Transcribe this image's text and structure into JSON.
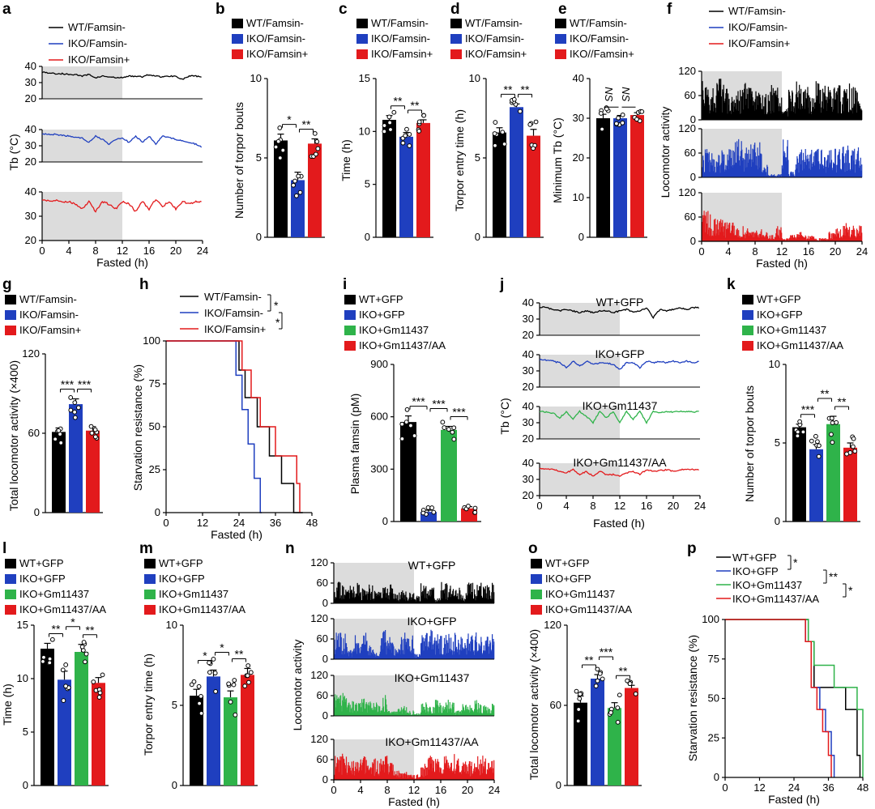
{
  "colors": {
    "WT": "#000000",
    "IKO": "#1f3fbf",
    "Gm": "#2fb34a",
    "AA": "#e31a1c",
    "shade": "#dcdcdc"
  },
  "chart_data": [
    {
      "id": "a",
      "type": "line",
      "xlabel": "Fasted (h)",
      "ylabel": "Tb (°C)",
      "xlim": [
        0,
        24
      ],
      "ylim": [
        20,
        40
      ],
      "x_ticks": [
        "0",
        "4",
        "8",
        "12",
        "16",
        "20",
        "24"
      ],
      "y_ticks": [
        "20",
        "30",
        "40"
      ],
      "shaded_x": [
        0,
        12
      ],
      "series": [
        {
          "name": "WT/Famsin-",
          "color": "#000000",
          "values": [
            36.5,
            36,
            35.5,
            35.5,
            35,
            35,
            34,
            35,
            33,
            34,
            33.5,
            33,
            33,
            34,
            34,
            33.5,
            35,
            34,
            33.5,
            34,
            34,
            32,
            34,
            34,
            33
          ]
        },
        {
          "name": "IKO/Famsin-",
          "color": "#1f3fbf",
          "values": [
            37.5,
            37,
            37,
            36.5,
            36,
            35,
            35,
            32,
            36,
            34,
            31,
            34,
            35,
            32,
            36,
            32,
            36,
            31,
            36,
            35,
            34,
            33,
            32,
            31,
            29
          ]
        },
        {
          "name": "IKO/Famsin+",
          "color": "#e31a1c",
          "values": [
            37,
            36.5,
            36.5,
            36,
            36,
            35,
            33,
            36,
            32,
            36,
            35,
            33,
            36,
            35,
            32,
            36,
            33,
            37,
            34,
            36,
            33,
            36,
            35,
            36,
            36
          ]
        }
      ]
    },
    {
      "id": "b",
      "type": "bar",
      "ylabel": "Number of torpor bouts",
      "ylim": [
        0,
        10
      ],
      "y_ticks": [
        "0",
        "5",
        "10"
      ],
      "legend": [
        "WT/Famsin-",
        "IKO/Famsin-",
        "IKO/Famsin+"
      ],
      "values": [
        6.1,
        3.6,
        5.9
      ],
      "errors": [
        0.4,
        0.5,
        0.3
      ],
      "significance": [
        {
          "from": 0,
          "to": 1,
          "text": "*"
        },
        {
          "from": 1,
          "to": 2,
          "text": "**"
        }
      ]
    },
    {
      "id": "c",
      "type": "bar",
      "ylabel": "Time (h)",
      "ylim": [
        0,
        15
      ],
      "y_ticks": [
        "0",
        "5",
        "10",
        "15"
      ],
      "legend": [
        "WT/Famsin-",
        "IKO/Famsin-",
        "IKO/Famsin+"
      ],
      "values": [
        11.1,
        9.5,
        10.8
      ],
      "errors": [
        0.4,
        0.4,
        0.3
      ],
      "significance": [
        {
          "from": 0,
          "to": 1,
          "text": "**"
        },
        {
          "from": 1,
          "to": 2,
          "text": "**"
        }
      ]
    },
    {
      "id": "d",
      "type": "bar",
      "ylabel": "Torpor entry time (h)",
      "ylim": [
        0,
        10
      ],
      "y_ticks": [
        "0",
        "5",
        "10"
      ],
      "legend": [
        "WT/Famsin-",
        "IKO/Famsin-",
        "IKO/Famsin+"
      ],
      "values": [
        6.6,
        8.2,
        6.4
      ],
      "errors": [
        0.3,
        0.2,
        0.4
      ],
      "significance": [
        {
          "from": 0,
          "to": 1,
          "text": "**"
        },
        {
          "from": 1,
          "to": 2,
          "text": "**"
        }
      ]
    },
    {
      "id": "e",
      "type": "bar",
      "ylabel": "Minimum Tb (°C)",
      "ylim": [
        0,
        40
      ],
      "y_ticks": [
        "0",
        "10",
        "20",
        "30",
        "40"
      ],
      "legend": [
        "WT/Famsin-",
        "IKO/Famsin-",
        "IKO//Famsin+"
      ],
      "values": [
        30.0,
        30.0,
        30.8
      ],
      "errors": [
        1.0,
        0.7,
        0.6
      ],
      "ns_labels": [
        "NS",
        "NS"
      ]
    },
    {
      "id": "f",
      "type": "bar",
      "xlabel": "Fasted (h)",
      "ylabel": "Locomotor activity",
      "xlim": [
        0,
        24
      ],
      "ylim": [
        0,
        120
      ],
      "x_ticks": [
        "0",
        "4",
        "8",
        "12",
        "16",
        "20",
        "24"
      ],
      "y_ticks": [
        "0",
        "60",
        "120"
      ],
      "shaded_x": [
        0,
        12
      ],
      "series": [
        {
          "name": "WT/Famsin-",
          "color": "#000000",
          "level_per_hour": [
            60,
            55,
            65,
            60,
            50,
            55,
            60,
            50,
            45,
            40,
            55,
            50,
            20,
            55,
            60,
            55,
            45,
            60,
            55,
            50,
            55,
            50,
            60,
            55
          ]
        },
        {
          "name": "IKO/Famsin-",
          "color": "#1f3fbf",
          "level_per_hour": [
            45,
            45,
            40,
            45,
            55,
            60,
            50,
            55,
            55,
            20,
            5,
            5,
            60,
            10,
            45,
            50,
            45,
            45,
            40,
            45,
            45,
            50,
            45,
            50
          ]
        },
        {
          "name": "IKO/Famsin+",
          "color": "#e31a1c",
          "level_per_hour": [
            55,
            45,
            40,
            35,
            30,
            20,
            25,
            15,
            20,
            15,
            10,
            25,
            5,
            10,
            15,
            10,
            10,
            5,
            5,
            15,
            20,
            30,
            25,
            25
          ]
        }
      ]
    },
    {
      "id": "g",
      "type": "bar",
      "ylabel": "Total locomotor activity (×400)",
      "ylim": [
        0,
        120
      ],
      "y_ticks": [
        "0",
        "60",
        "120"
      ],
      "legend": [
        "WT/Famsin-",
        "IKO/Famsin-",
        "IKO/Famsin+"
      ],
      "values": [
        61,
        82,
        62
      ],
      "errors": [
        3,
        4,
        3
      ],
      "significance": [
        {
          "from": 0,
          "to": 1,
          "text": "***"
        },
        {
          "from": 1,
          "to": 2,
          "text": "***"
        }
      ]
    },
    {
      "id": "h",
      "type": "line",
      "ylabel": "Starvation resistance (%)",
      "xlabel": "Fasted (h)",
      "xlim": [
        0,
        48
      ],
      "ylim": [
        0,
        100
      ],
      "x_ticks": [
        "0",
        "12",
        "24",
        "36",
        "48"
      ],
      "y_ticks": [
        "0",
        "25",
        "50",
        "75",
        "100"
      ],
      "series": [
        {
          "name": "WT/Famsin-",
          "color": "#000000",
          "x": [
            0,
            24,
            26,
            30,
            34,
            38,
            42,
            45
          ],
          "y": [
            100,
            83,
            67,
            50,
            33,
            17,
            0,
            0
          ]
        },
        {
          "name": "IKO/Famsin-",
          "color": "#1f3fbf",
          "x": [
            0,
            23,
            25,
            27,
            29,
            31,
            31.5
          ],
          "y": [
            100,
            80,
            60,
            40,
            20,
            0,
            0
          ]
        },
        {
          "name": "IKO/Famsin+",
          "color": "#e31a1c",
          "x": [
            0,
            25,
            28,
            31,
            36,
            43,
            44
          ],
          "y": [
            100,
            83,
            67,
            50,
            33,
            17,
            0
          ]
        }
      ],
      "significance": [
        "*",
        "*"
      ]
    },
    {
      "id": "i",
      "type": "bar",
      "ylabel": "Plasma famsin (pM)",
      "ylim": [
        0,
        900
      ],
      "y_ticks": [
        "0",
        "300",
        "600",
        "900"
      ],
      "legend": [
        "WT+GFP",
        "IKO+GFP",
        "IKO+Gm11437",
        "IKO+Gm11437/AA"
      ],
      "values": [
        570,
        55,
        525,
        75
      ],
      "errors": [
        35,
        10,
        20,
        10
      ],
      "significance": [
        {
          "from": 0,
          "to": 1,
          "text": "***"
        },
        {
          "from": 1,
          "to": 2,
          "text": "***"
        },
        {
          "from": 2,
          "to": 3,
          "text": "***"
        }
      ]
    },
    {
      "id": "j",
      "type": "line",
      "xlabel": "Fasted (h)",
      "ylabel": "Tb (°C)",
      "xlim": [
        0,
        24
      ],
      "ylim": [
        20,
        40
      ],
      "x_ticks": [
        "0",
        "4",
        "8",
        "12",
        "16",
        "20",
        "24"
      ],
      "y_ticks": [
        "20",
        "30",
        "40"
      ],
      "shaded_x": [
        0,
        12
      ],
      "series": [
        {
          "name": "WT+GFP",
          "color": "#000000",
          "values": [
            37.5,
            37,
            36,
            35,
            36,
            35,
            34,
            35,
            34,
            35,
            35,
            34,
            35,
            36,
            34,
            35,
            37,
            31,
            36,
            35,
            36,
            37,
            36,
            37,
            37
          ]
        },
        {
          "name": "IKO+GFP",
          "color": "#1f3fbf",
          "values": [
            37,
            36.5,
            36,
            35,
            32,
            36,
            33,
            36,
            34,
            35,
            35,
            34,
            31,
            35,
            35,
            32,
            36,
            35,
            36,
            35,
            36,
            35,
            36,
            35,
            36
          ]
        },
        {
          "name": "IKO+Gm11437",
          "color": "#2fb34a",
          "values": [
            37,
            36.5,
            36,
            33,
            37,
            32,
            37,
            34,
            30,
            37,
            33,
            37,
            30,
            37,
            32,
            37,
            30,
            37,
            36,
            37,
            36.5,
            37,
            37,
            36.5,
            37
          ]
        },
        {
          "name": "IKO+Gm11437/AA",
          "color": "#e31a1c",
          "values": [
            37,
            36.5,
            36.5,
            35,
            34,
            36,
            33,
            35,
            32,
            35,
            33,
            33,
            32,
            34,
            35,
            33,
            36,
            35,
            35.5,
            36,
            35,
            36,
            36.5,
            36,
            36
          ]
        }
      ]
    },
    {
      "id": "k",
      "type": "bar",
      "ylabel": "Number of torpor bouts",
      "ylim": [
        0,
        10
      ],
      "y_ticks": [
        "0",
        "5",
        "10"
      ],
      "legend": [
        "WT+GFP",
        "IKO+GFP",
        "IKO+Gm11437",
        "IKO+Gm11437/AA"
      ],
      "values": [
        6.0,
        4.6,
        6.2,
        4.7
      ],
      "errors": [
        0.2,
        0.3,
        0.5,
        0.3
      ],
      "significance": [
        {
          "from": 0,
          "to": 1,
          "text": "***"
        },
        {
          "from": 1,
          "to": 2,
          "text": "**"
        },
        {
          "from": 2,
          "to": 3,
          "text": "**"
        }
      ]
    },
    {
      "id": "l",
      "type": "bar",
      "ylabel": "Time (h)",
      "ylim": [
        0,
        15
      ],
      "y_ticks": [
        "0",
        "5",
        "10",
        "15"
      ],
      "legend": [
        "WT+GFP",
        "IKO+GFP",
        "IKO+Gm11437",
        "IKO+Gm11437/AA"
      ],
      "values": [
        12.8,
        9.9,
        12.5,
        9.6
      ],
      "errors": [
        0.5,
        0.8,
        0.7,
        0.5
      ],
      "significance": [
        {
          "from": 0,
          "to": 1,
          "text": "**"
        },
        {
          "from": 1,
          "to": 2,
          "text": "*"
        },
        {
          "from": 2,
          "to": 3,
          "text": "**"
        }
      ]
    },
    {
      "id": "m",
      "type": "bar",
      "ylabel": "Torpor entry time (h)",
      "ylim": [
        0,
        10
      ],
      "y_ticks": [
        "0",
        "5",
        "10"
      ],
      "legend": [
        "WT+GFP",
        "IKO+GFP",
        "IKO+Gm11437",
        "IKO+Gm11437/AA"
      ],
      "values": [
        5.6,
        6.8,
        5.5,
        6.9
      ],
      "errors": [
        0.4,
        0.4,
        0.4,
        0.4
      ],
      "significance": [
        {
          "from": 0,
          "to": 1,
          "text": "*"
        },
        {
          "from": 1,
          "to": 2,
          "text": "*"
        },
        {
          "from": 2,
          "to": 3,
          "text": "**"
        }
      ]
    },
    {
      "id": "n",
      "type": "bar",
      "xlabel": "Fasted (h)",
      "ylabel": "Locomotor activity",
      "xlim": [
        0,
        24
      ],
      "ylim": [
        0,
        120
      ],
      "x_ticks": [
        "0",
        "4",
        "8",
        "12",
        "16",
        "20",
        "24"
      ],
      "y_ticks": [
        "0",
        "60",
        "120"
      ],
      "shaded_x": [
        0,
        12
      ],
      "series": [
        {
          "name": "WT+GFP",
          "color": "#000000",
          "level_per_hour": [
            45,
            40,
            35,
            40,
            30,
            35,
            25,
            30,
            35,
            20,
            25,
            20,
            15,
            40,
            35,
            10,
            45,
            35,
            30,
            20,
            40,
            35,
            45,
            40
          ]
        },
        {
          "name": "IKO+GFP",
          "color": "#1f3fbf",
          "level_per_hour": [
            55,
            50,
            20,
            45,
            50,
            25,
            15,
            55,
            45,
            20,
            50,
            45,
            10,
            50,
            55,
            50,
            45,
            50,
            50,
            45,
            50,
            50,
            45,
            50
          ]
        },
        {
          "name": "IKO+Gm11437",
          "color": "#2fb34a",
          "level_per_hour": [
            40,
            45,
            30,
            25,
            35,
            30,
            25,
            40,
            10,
            15,
            20,
            10,
            5,
            25,
            20,
            30,
            25,
            30,
            10,
            25,
            20,
            30,
            20,
            25
          ]
        },
        {
          "name": "IKO+Gm11437/AA",
          "color": "#e31a1c",
          "level_per_hour": [
            45,
            50,
            40,
            35,
            45,
            35,
            40,
            45,
            35,
            20,
            15,
            10,
            10,
            30,
            45,
            40,
            45,
            35,
            50,
            35,
            40,
            45,
            45,
            40
          ]
        }
      ]
    },
    {
      "id": "o",
      "type": "bar",
      "ylabel": "Total locomotor activity (×400)",
      "ylim": [
        0,
        120
      ],
      "y_ticks": [
        "0",
        "60",
        "120"
      ],
      "legend": [
        "WT+GFP",
        "IKO+GFP",
        "IKO+Gm11437",
        "IKO+Gm11437/AA"
      ],
      "values": [
        62,
        80,
        58,
        73
      ],
      "errors": [
        5,
        3,
        4,
        2
      ],
      "significance": [
        {
          "from": 0,
          "to": 1,
          "text": "**"
        },
        {
          "from": 1,
          "to": 2,
          "text": "***"
        },
        {
          "from": 2,
          "to": 3,
          "text": "**"
        }
      ]
    },
    {
      "id": "p",
      "type": "line",
      "ylabel": "Starvation resistance (%)",
      "xlabel": "Fasted (h)",
      "xlim": [
        0,
        48
      ],
      "ylim": [
        0,
        100
      ],
      "x_ticks": [
        "0",
        "12",
        "24",
        "36",
        "48"
      ],
      "y_ticks": [
        "0",
        "25",
        "50",
        "75",
        "100"
      ],
      "series": [
        {
          "name": "WT+GFP",
          "color": "#000000",
          "x": [
            0,
            29,
            31,
            35,
            42,
            46,
            47
          ],
          "y": [
            100,
            86,
            57,
            57,
            43,
            14,
            0
          ]
        },
        {
          "name": "IKO+GFP",
          "color": "#1f3fbf",
          "x": [
            0,
            28,
            30,
            33,
            35,
            37,
            38
          ],
          "y": [
            100,
            86,
            57,
            43,
            29,
            14,
            0
          ]
        },
        {
          "name": "IKO+Gm11437",
          "color": "#2fb34a",
          "x": [
            0,
            29,
            31,
            38,
            46,
            48
          ],
          "y": [
            100,
            86,
            71,
            57,
            43,
            0
          ]
        },
        {
          "name": "IKO+Gm11437/AA",
          "color": "#e31a1c",
          "x": [
            0,
            28,
            30,
            32,
            34,
            36,
            37
          ],
          "y": [
            100,
            86,
            57,
            43,
            29,
            14,
            0
          ]
        }
      ],
      "significance": [
        "*",
        "**",
        "*"
      ]
    }
  ],
  "panels": {
    "n": {
      "titles": [
        "WT+GFP",
        "IKO+GFP",
        "IKO+Gm11437",
        "IKO+Gm11437/AA"
      ]
    },
    "j": {
      "titles": [
        "WT+GFP",
        "IKO+GFP",
        "IKO+Gm11437",
        "IKO+Gm11437/AA"
      ]
    }
  }
}
